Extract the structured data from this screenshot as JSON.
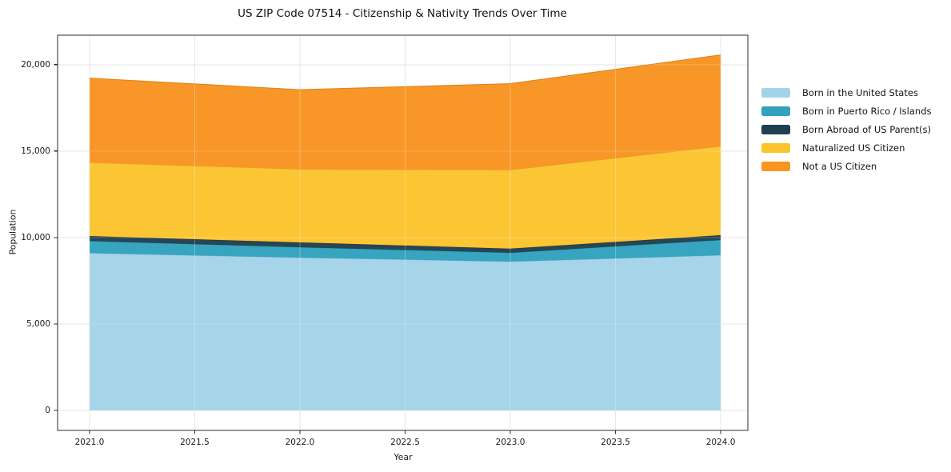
{
  "title": "US ZIP Code 07514 - Citizenship & Nativity Trends Over Time",
  "chart_data": {
    "type": "area",
    "stacked": true,
    "title": "US ZIP Code 07514 - Citizenship & Nativity Trends Over Time",
    "xlabel": "Year",
    "ylabel": "Population",
    "x": [
      2021,
      2022,
      2023,
      2024
    ],
    "series": [
      {
        "name": "Born in the United States",
        "color": "#a3d3e8",
        "values": [
          9100,
          8840,
          8610,
          8980
        ]
      },
      {
        "name": "Born in Puerto Rico / Islands",
        "color": "#31a2bd",
        "values": [
          700,
          600,
          510,
          880
        ]
      },
      {
        "name": "Born Abroad of US Parent(s)",
        "color": "#1f4050",
        "values": [
          290,
          280,
          240,
          280
        ]
      },
      {
        "name": "Naturalized US Citizen",
        "color": "#fcc32d",
        "values": [
          4250,
          4230,
          4550,
          5140
        ]
      },
      {
        "name": "Not a US Citizen",
        "color": "#f89420",
        "values": [
          4880,
          4600,
          4990,
          5280
        ]
      }
    ],
    "totals_by_year": [
      19220,
      18550,
      18900,
      20560
    ],
    "xticks": [
      2021.0,
      2021.5,
      2022.0,
      2022.5,
      2023.0,
      2023.5,
      2024.0
    ],
    "xtick_labels": [
      "2021.0",
      "2021.5",
      "2022.0",
      "2022.5",
      "2023.0",
      "2023.5",
      "2024.0"
    ],
    "yticks": [
      0,
      5000,
      10000,
      15000,
      20000
    ],
    "ytick_labels": [
      "0",
      "5,000",
      "10,000",
      "15,000",
      "20,000"
    ],
    "xlim": [
      2020.848,
      2024.129
    ],
    "ylim": [
      -1150,
      21700
    ],
    "grid": true,
    "grid_color": "#e6e6e6",
    "spine_color": "#2b2b2b",
    "legend_position": "right"
  }
}
